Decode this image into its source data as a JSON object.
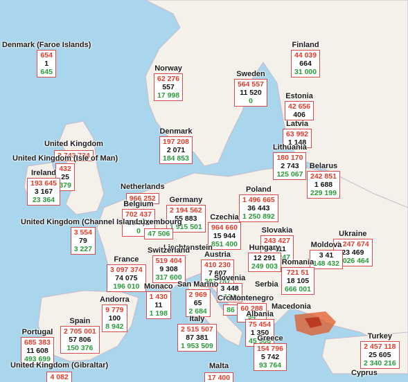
{
  "map": {
    "colors": {
      "water": "#a9d6ec",
      "land": "#f4f1ea",
      "border": "#c9b9c9",
      "confirmed": "#e03c2a",
      "deaths": "#111111",
      "recovered": "#2a9a3a",
      "box_border": "#d94a4a",
      "heat": "#e05a2a"
    },
    "markers": [
      {
        "name": "Denmark (Faroe Islands)",
        "c": "654",
        "d": "1",
        "r": "645"
      },
      {
        "name": "Finland",
        "c": "44 039",
        "d": "664",
        "r": "31 000"
      },
      {
        "name": "Norway",
        "c": "62 276",
        "d": "557",
        "r": "17 998"
      },
      {
        "name": "Sweden",
        "c": "564 557",
        "d": "11 520",
        "r": "0"
      },
      {
        "name": "Estonia",
        "c": "42 656",
        "d": "406",
        "r": ""
      },
      {
        "name": "Latvia",
        "c": "63 992",
        "d": "1 148",
        "r": ""
      },
      {
        "name": "Lithuania",
        "c": "180 170",
        "d": "2 743",
        "r": "125 067"
      },
      {
        "name": "Denmark",
        "c": "197 208",
        "d": "2 071",
        "r": "184 853"
      },
      {
        "name": "United Kingdom",
        "c": "2 743 734",
        "d": "",
        "r": ""
      },
      {
        "name": "United Kingdom (Isle of Man)",
        "c": "432",
        "d": "25",
        "r": "379"
      },
      {
        "name": "Ireland",
        "c": "193 645",
        "d": "3 167",
        "r": "23 364"
      },
      {
        "name": "Belarus",
        "c": "242 851",
        "d": "1 688",
        "r": "229 199"
      },
      {
        "name": "Netherlands",
        "c": "966 252",
        "d": "",
        "r": ""
      },
      {
        "name": "Belgium",
        "c": "702 437",
        "d": "20 982",
        "r": "0"
      },
      {
        "name": "Germany",
        "c": "2 194 562",
        "d": "55 883",
        "r": "1 915 501"
      },
      {
        "name": "Poland",
        "c": "1 496 665",
        "d": "36 443",
        "r": "1 250 892"
      },
      {
        "name": "Czechia",
        "c": "964 660",
        "d": "15 944",
        "r": "851 400"
      },
      {
        "name": "Ukraine",
        "c": "1 247 674",
        "d": "23 469",
        "r": "1 026 464"
      },
      {
        "name": "United Kingdom (Channel Islands)",
        "c": "3 554",
        "d": "79",
        "r": "3 227"
      },
      {
        "name": "Slovakia",
        "c": "243 427",
        "d": "4 411",
        "r": "205 247"
      },
      {
        "name": "Moldova",
        "c": "",
        "d": "3 41",
        "r": "148 432"
      },
      {
        "name": "Luxembourg",
        "c": "",
        "d": "",
        "r": "47 506"
      },
      {
        "name": "Liechtenstein",
        "c": "",
        "d": "",
        "r": ""
      },
      {
        "name": "Switzerland",
        "c": "519 404",
        "d": "9 308",
        "r": "317 600"
      },
      {
        "name": "Austria",
        "c": "410 230",
        "d": "7 607",
        "r": "387 787"
      },
      {
        "name": "Hungary",
        "c": "",
        "d": "12 291",
        "r": "249 003"
      },
      {
        "name": "Romania",
        "c": "721 51",
        "d": "18 105",
        "r": "666 001"
      },
      {
        "name": "France",
        "c": "3 097 374",
        "d": "74 075",
        "r": "196 010"
      },
      {
        "name": "Slovenia",
        "c": "",
        "d": "3 448",
        "r": "134"
      },
      {
        "name": "Monaco",
        "c": "1 430",
        "d": "11",
        "r": "1 198"
      },
      {
        "name": "San Marino",
        "c": "2 969",
        "d": "65",
        "r": "2 684"
      },
      {
        "name": "Croatia",
        "c": "",
        "d": "",
        "r": "86"
      },
      {
        "name": "Serbia",
        "c": "",
        "d": "",
        "r": ""
      },
      {
        "name": "Montenegro",
        "c": "60 288",
        "d": "",
        "r": "94"
      },
      {
        "name": "Macedonia",
        "c": "",
        "d": "",
        "r": ""
      },
      {
        "name": "Andorra",
        "c": "9 779",
        "d": "100",
        "r": "8 942"
      },
      {
        "name": "Italy",
        "c": "2 515 507",
        "d": "87 381",
        "r": "1 953 509"
      },
      {
        "name": "Albania",
        "c": "75 454",
        "d": "1 350",
        "r": "45 906"
      },
      {
        "name": "Greece",
        "c": "154 796",
        "d": "5 742",
        "r": "93 764"
      },
      {
        "name": "Spain",
        "c": "2 705 001",
        "d": "57 806",
        "r": "150 376"
      },
      {
        "name": "Portugal",
        "c": "685 383",
        "d": "11 608",
        "r": "493 699"
      },
      {
        "name": "Turkey",
        "c": "2 457 118",
        "d": "25 605",
        "r": "2 340 216"
      },
      {
        "name": "United Kingdom (Gibraltar)",
        "c": "4 082",
        "d": "",
        "r": ""
      },
      {
        "name": "Malta",
        "c": "17 400",
        "d": "",
        "r": ""
      },
      {
        "name": "Cyprus",
        "c": "",
        "d": "",
        "r": ""
      }
    ]
  }
}
